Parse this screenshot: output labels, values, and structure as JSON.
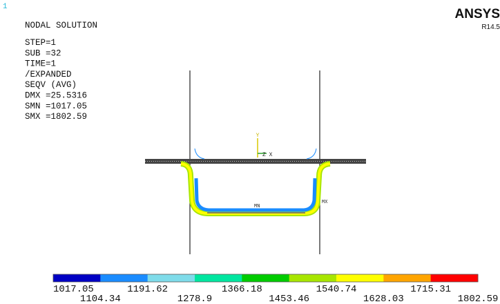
{
  "window": {
    "number": "1"
  },
  "info": {
    "title": "NODAL SOLUTION",
    "lines": [
      "STEP=1",
      "SUB =32",
      "TIME=1",
      "/EXPANDED",
      "SEQV     (AVG)",
      "DMX =25.5316",
      "SMN =1017.05",
      "SMX =1802.59"
    ]
  },
  "brand": {
    "name": "ANSYS",
    "version": "R14.5"
  },
  "model": {
    "max_marker": "MX",
    "min_marker": "MN",
    "axis_y": "Y",
    "axis_zx": "Z X"
  },
  "legend": {
    "colors": [
      "#0000c4",
      "#1a8cff",
      "#7fdcea",
      "#00e6a0",
      "#00cc00",
      "#a8e600",
      "#ffff00",
      "#ffa500",
      "#ff0000"
    ],
    "labels": [
      "1017.05",
      "1104.34",
      "1191.62",
      "1278.9",
      "1366.18",
      "1453.46",
      "1540.74",
      "1628.03",
      "1715.31",
      "1802.59"
    ]
  }
}
